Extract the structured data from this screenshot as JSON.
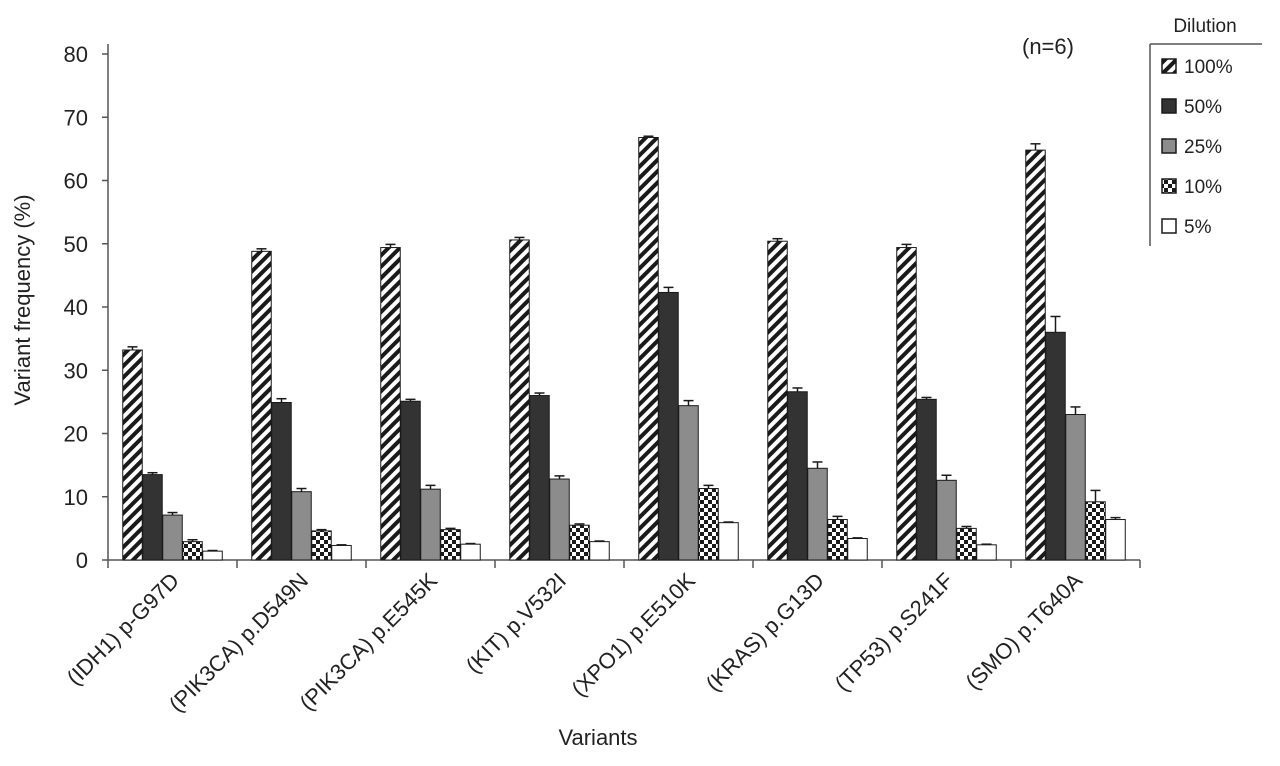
{
  "chart_data": {
    "type": "bar",
    "title": "",
    "annotation": "(n=6)",
    "xlabel": "Variants",
    "ylabel": "Variant frequency (%)",
    "ylim": [
      0,
      80
    ],
    "yticks": [
      0,
      10,
      20,
      30,
      40,
      50,
      60,
      70,
      80
    ],
    "grid": false,
    "legend": {
      "title": "Dilution",
      "placement": "top-right"
    },
    "categories": [
      "(IDH1) p-G97D",
      "(PIK3CA) p.D549N",
      "(PIK3CA) p.E545K",
      "(KIT) p.V532I",
      "(XPO1) p.E510K",
      "(KRAS) p.G13D",
      "(TP53) p.S241F",
      "(SMO) p.T640A"
    ],
    "series": [
      {
        "name": "100%",
        "pattern": "diagonal-stripe",
        "color": "#1a1a1a",
        "values": [
          33.2,
          48.8,
          49.4,
          50.6,
          66.8,
          50.4,
          49.4,
          64.8
        ],
        "errors": [
          0.5,
          0.4,
          0.5,
          0.4,
          0.2,
          0.4,
          0.5,
          1.0
        ]
      },
      {
        "name": "50%",
        "pattern": "solid",
        "color": "#333333",
        "values": [
          13.5,
          24.9,
          25.1,
          26.0,
          42.3,
          26.6,
          25.4,
          36.0
        ],
        "errors": [
          0.3,
          0.6,
          0.3,
          0.4,
          0.8,
          0.6,
          0.3,
          2.5
        ]
      },
      {
        "name": "25%",
        "pattern": "solid",
        "color": "#8c8c8c",
        "values": [
          7.1,
          10.8,
          11.2,
          12.8,
          24.4,
          14.5,
          12.6,
          23.0
        ],
        "errors": [
          0.4,
          0.5,
          0.6,
          0.5,
          0.8,
          1.0,
          0.8,
          1.2
        ]
      },
      {
        "name": "10%",
        "pattern": "checker",
        "color": "#1a1a1a",
        "values": [
          2.9,
          4.6,
          4.8,
          5.5,
          11.3,
          6.4,
          5.0,
          9.2
        ],
        "errors": [
          0.3,
          0.2,
          0.2,
          0.2,
          0.5,
          0.5,
          0.3,
          1.8
        ]
      },
      {
        "name": "5%",
        "pattern": "hollow",
        "color": "#ffffff",
        "values": [
          1.4,
          2.3,
          2.5,
          2.9,
          5.9,
          3.4,
          2.4,
          6.4
        ],
        "errors": [
          0.1,
          0.1,
          0.1,
          0.1,
          0.1,
          0.1,
          0.1,
          0.3
        ]
      }
    ]
  }
}
